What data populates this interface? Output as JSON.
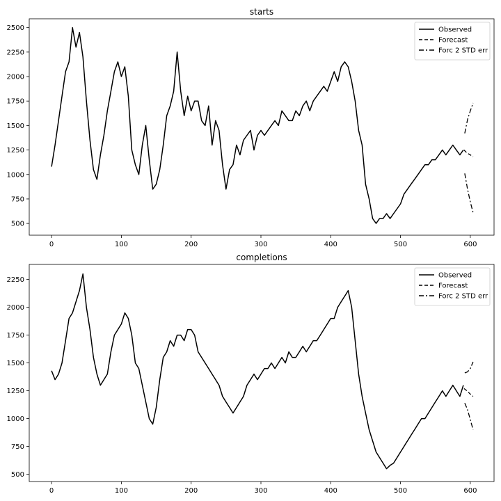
{
  "chart_data": [
    {
      "type": "line",
      "title": "starts",
      "xlabel": "",
      "ylabel": "",
      "xlim": [
        -32,
        634
      ],
      "ylim": [
        380,
        2590
      ],
      "x_ticks": [
        0,
        100,
        200,
        300,
        400,
        500,
        600
      ],
      "y_ticks": [
        500,
        750,
        1000,
        1250,
        1500,
        1750,
        2000,
        2250,
        2500
      ],
      "grid": false,
      "legend_position": "top-right",
      "legend": [
        "Observed",
        "Forecast",
        "Forc 2 STD err"
      ],
      "series": [
        {
          "name": "Observed",
          "style": "solid",
          "x": [
            0,
            5,
            10,
            15,
            20,
            25,
            30,
            35,
            40,
            45,
            50,
            55,
            60,
            65,
            70,
            75,
            80,
            85,
            90,
            95,
            100,
            105,
            110,
            115,
            120,
            125,
            130,
            135,
            140,
            145,
            150,
            155,
            160,
            165,
            170,
            175,
            180,
            185,
            190,
            195,
            200,
            205,
            210,
            215,
            220,
            225,
            230,
            235,
            240,
            245,
            250,
            255,
            260,
            265,
            270,
            275,
            280,
            285,
            290,
            295,
            300,
            305,
            310,
            315,
            320,
            325,
            330,
            335,
            340,
            345,
            350,
            355,
            360,
            365,
            370,
            375,
            380,
            385,
            390,
            395,
            400,
            405,
            410,
            415,
            420,
            425,
            430,
            435,
            440,
            445,
            450,
            455,
            460,
            465,
            470,
            475,
            480,
            485,
            490,
            495,
            500,
            505,
            510,
            515,
            520,
            525,
            530,
            535,
            540,
            545,
            550,
            555,
            560,
            565,
            570,
            575,
            580,
            585,
            590
          ],
          "values": [
            1080,
            1300,
            1550,
            1800,
            2050,
            2150,
            2500,
            2300,
            2450,
            2200,
            1750,
            1350,
            1050,
            950,
            1200,
            1400,
            1650,
            1850,
            2050,
            2150,
            2000,
            2100,
            1800,
            1250,
            1100,
            1000,
            1300,
            1500,
            1150,
            850,
            900,
            1050,
            1300,
            1600,
            1700,
            1850,
            2250,
            1850,
            1600,
            1800,
            1650,
            1750,
            1750,
            1550,
            1500,
            1700,
            1300,
            1550,
            1450,
            1100,
            850,
            1050,
            1100,
            1300,
            1200,
            1350,
            1400,
            1450,
            1250,
            1400,
            1450,
            1400,
            1450,
            1500,
            1550,
            1500,
            1650,
            1600,
            1550,
            1550,
            1650,
            1600,
            1700,
            1750,
            1650,
            1750,
            1800,
            1850,
            1900,
            1850,
            1950,
            2050,
            1950,
            2100,
            2150,
            2100,
            1950,
            1750,
            1450,
            1300,
            900,
            750,
            550,
            500,
            550,
            550,
            600,
            550,
            600,
            650,
            700,
            800,
            850,
            900,
            950,
            1000,
            1050,
            1100,
            1100,
            1150,
            1150,
            1200,
            1250,
            1200,
            1250,
            1300,
            1250,
            1200,
            1250
          ]
        },
        {
          "name": "Forecast",
          "style": "dashed",
          "x": [
            591,
            595,
            600,
            604
          ],
          "values": [
            1250,
            1220,
            1200,
            1180
          ]
        },
        {
          "name": "Forc 2 STD err",
          "style": "dashdot",
          "x": [
            592,
            596,
            600,
            604
          ],
          "values": [
            1420,
            1560,
            1650,
            1730
          ]
        },
        {
          "name": "",
          "style": "dashdot",
          "x": [
            592,
            596,
            600,
            604
          ],
          "values": [
            1010,
            850,
            720,
            610
          ]
        }
      ]
    },
    {
      "type": "line",
      "title": "completions",
      "xlabel": "",
      "ylabel": "",
      "xlim": [
        -32,
        634
      ],
      "ylim": [
        435,
        2385
      ],
      "x_ticks": [
        0,
        100,
        200,
        300,
        400,
        500,
        600
      ],
      "y_ticks": [
        500,
        750,
        1000,
        1250,
        1500,
        1750,
        2000,
        2250
      ],
      "grid": false,
      "legend_position": "top-right",
      "legend": [
        "Observed",
        "Forecast",
        "Forc 2 STD err"
      ],
      "series": [
        {
          "name": "Observed",
          "style": "solid",
          "x": [
            0,
            5,
            10,
            15,
            20,
            25,
            30,
            35,
            40,
            45,
            50,
            55,
            60,
            65,
            70,
            75,
            80,
            85,
            90,
            95,
            100,
            105,
            110,
            115,
            120,
            125,
            130,
            135,
            140,
            145,
            150,
            155,
            160,
            165,
            170,
            175,
            180,
            185,
            190,
            195,
            200,
            205,
            210,
            215,
            220,
            225,
            230,
            235,
            240,
            245,
            250,
            255,
            260,
            265,
            270,
            275,
            280,
            285,
            290,
            295,
            300,
            305,
            310,
            315,
            320,
            325,
            330,
            335,
            340,
            345,
            350,
            355,
            360,
            365,
            370,
            375,
            380,
            385,
            390,
            395,
            400,
            405,
            410,
            415,
            420,
            425,
            430,
            435,
            440,
            445,
            450,
            455,
            460,
            465,
            470,
            475,
            480,
            485,
            490,
            495,
            500,
            505,
            510,
            515,
            520,
            525,
            530,
            535,
            540,
            545,
            550,
            555,
            560,
            565,
            570,
            575,
            580,
            585,
            590
          ],
          "values": [
            1430,
            1350,
            1400,
            1500,
            1700,
            1900,
            1950,
            2050,
            2150,
            2300,
            2000,
            1800,
            1550,
            1400,
            1300,
            1350,
            1400,
            1600,
            1750,
            1800,
            1850,
            1950,
            1900,
            1750,
            1500,
            1450,
            1300,
            1150,
            1000,
            950,
            1100,
            1350,
            1550,
            1600,
            1700,
            1650,
            1750,
            1750,
            1700,
            1800,
            1800,
            1750,
            1600,
            1550,
            1500,
            1450,
            1400,
            1350,
            1300,
            1200,
            1150,
            1100,
            1050,
            1100,
            1150,
            1200,
            1300,
            1350,
            1400,
            1350,
            1400,
            1450,
            1450,
            1500,
            1450,
            1500,
            1550,
            1500,
            1600,
            1550,
            1550,
            1600,
            1650,
            1600,
            1650,
            1700,
            1700,
            1750,
            1800,
            1850,
            1900,
            1900,
            2000,
            2050,
            2100,
            2150,
            2000,
            1700,
            1400,
            1200,
            1050,
            900,
            800,
            700,
            650,
            600,
            550,
            580,
            600,
            650,
            700,
            750,
            800,
            850,
            900,
            950,
            1000,
            1000,
            1050,
            1100,
            1150,
            1200,
            1250,
            1200,
            1250,
            1300,
            1250,
            1200,
            1300
          ]
        },
        {
          "name": "Forecast",
          "style": "dashed",
          "x": [
            591,
            595,
            600,
            604
          ],
          "values": [
            1270,
            1250,
            1220,
            1200
          ]
        },
        {
          "name": "Forc 2 STD err",
          "style": "dashdot",
          "x": [
            592,
            596,
            600,
            604
          ],
          "values": [
            1410,
            1420,
            1450,
            1510
          ]
        },
        {
          "name": "",
          "style": "dashdot",
          "x": [
            592,
            596,
            600,
            604
          ],
          "values": [
            1140,
            1080,
            990,
            900
          ]
        }
      ]
    }
  ]
}
